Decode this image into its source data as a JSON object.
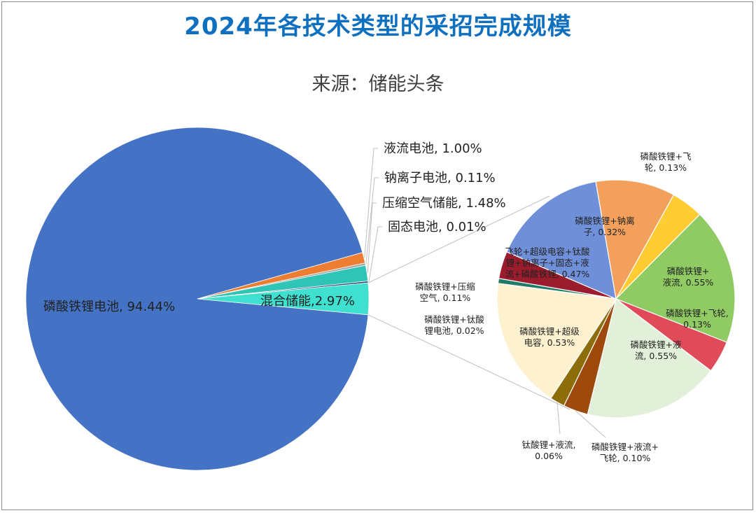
{
  "title": "2024年各技术类型的采招完成规模",
  "subtitle": "来源：储能头条",
  "colors": {
    "title": "#1070c0",
    "leader": "#bfbfbf"
  },
  "chart_data": [
    {
      "type": "pie",
      "slices": [
        {
          "label": "磷酸铁锂电池, 94.44%",
          "value": 94.44,
          "color": "#4472c4"
        },
        {
          "label": "液流电池, 1.00%",
          "value": 1.0,
          "color": "#ed7d31"
        },
        {
          "label": "钠离子电池, 0.11%",
          "value": 0.11,
          "color": "#a5a5a5"
        },
        {
          "label": "压缩空气储能, 1.48%",
          "value": 1.48,
          "color": "#2ec4b6"
        },
        {
          "label": "固态电池, 0.01%",
          "value": 0.01,
          "color": "#264478"
        },
        {
          "label": "混合储能,2.97%",
          "value": 2.97,
          "color": "#40e0d0"
        }
      ]
    },
    {
      "type": "pie",
      "slices": [
        {
          "label": [
            "磷酸铁锂+飞",
            "轮, 0.13%"
          ],
          "value": 0.13,
          "color": "#ffcc33"
        },
        {
          "label": [
            "磷酸铁锂+",
            "液流, 0.55%"
          ],
          "value": 0.55,
          "color": "#8fca62"
        },
        {
          "label": [
            "磷酸铁锂+飞轮,",
            "0.13%"
          ],
          "value": 0.13,
          "color": "#e04b5a"
        },
        {
          "label": [
            "磷酸铁锂+液",
            "流, 0.55%"
          ],
          "value": 0.55,
          "color": "#e2f0d9"
        },
        {
          "label": [
            "磷酸铁锂+液流+",
            "飞轮, 0.10%"
          ],
          "value": 0.1,
          "color": "#9e4a0c"
        },
        {
          "label": [
            "钛酸锂+液流,",
            "0.06%"
          ],
          "value": 0.06,
          "color": "#8c6d0a"
        },
        {
          "label": [
            "磷酸铁锂+超级",
            "电容, 0.53%"
          ],
          "value": 0.53,
          "color": "#fdf1cf"
        },
        {
          "label": [
            "磷酸铁锂+钛酸",
            "锂电池, 0.02%"
          ],
          "value": 0.02,
          "color": "#1f7a66"
        },
        {
          "label": [
            "磷酸铁锂+压缩",
            "空气, 0.11%"
          ],
          "value": 0.11,
          "color": "#9b1c2c"
        },
        {
          "label": [
            "飞轮+超级电容+钛酸",
            "锂+钠离子+固态+液",
            "流+磷酸铁锂, 0.47%"
          ],
          "value": 0.47,
          "color": "#6f8fd8"
        },
        {
          "label": [
            "磷酸铁锂+钠离",
            "子, 0.32%"
          ],
          "value": 0.32,
          "color": "#f2a05c"
        }
      ]
    }
  ]
}
